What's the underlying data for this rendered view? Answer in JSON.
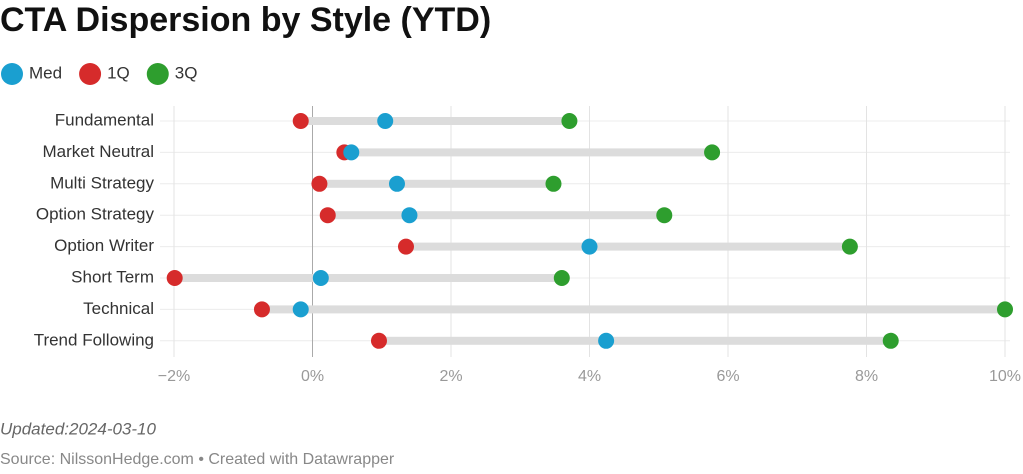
{
  "chart_data": {
    "type": "range_dot",
    "title": "CTA Dispersion by Style (YTD)",
    "categories": [
      "Fundamental",
      "Market Neutral",
      "Multi Strategy",
      "Option Strategy",
      "Option Writer",
      "Short Term",
      "Technical",
      "Trend Following"
    ],
    "series": [
      {
        "name": "Med",
        "color": "#1a9fd0",
        "values": [
          1.05,
          0.56,
          1.22,
          1.4,
          4.0,
          0.12,
          -0.17,
          4.24
        ]
      },
      {
        "name": "1Q",
        "color": "#d62b2b",
        "values": [
          -0.17,
          0.46,
          0.1,
          0.22,
          1.35,
          -1.99,
          -0.73,
          0.96
        ]
      },
      {
        "name": "3Q",
        "color": "#2e9e2e",
        "values": [
          3.71,
          5.77,
          3.48,
          5.08,
          7.76,
          3.6,
          10.0,
          8.35
        ]
      }
    ],
    "xlim": [
      -2,
      10
    ],
    "xticks": [
      {
        "value": -2,
        "label": "−2%"
      },
      {
        "value": 0,
        "label": "0%"
      },
      {
        "value": 2,
        "label": "2%"
      },
      {
        "value": 4,
        "label": "4%"
      },
      {
        "value": 6,
        "label": "6%"
      },
      {
        "value": 8,
        "label": "8%"
      },
      {
        "value": 10,
        "label": "10%"
      }
    ],
    "grid": true,
    "notes": "Updated:2024-03-10",
    "source": "Source: NilssonHedge.com • Created with Datawrapper"
  }
}
